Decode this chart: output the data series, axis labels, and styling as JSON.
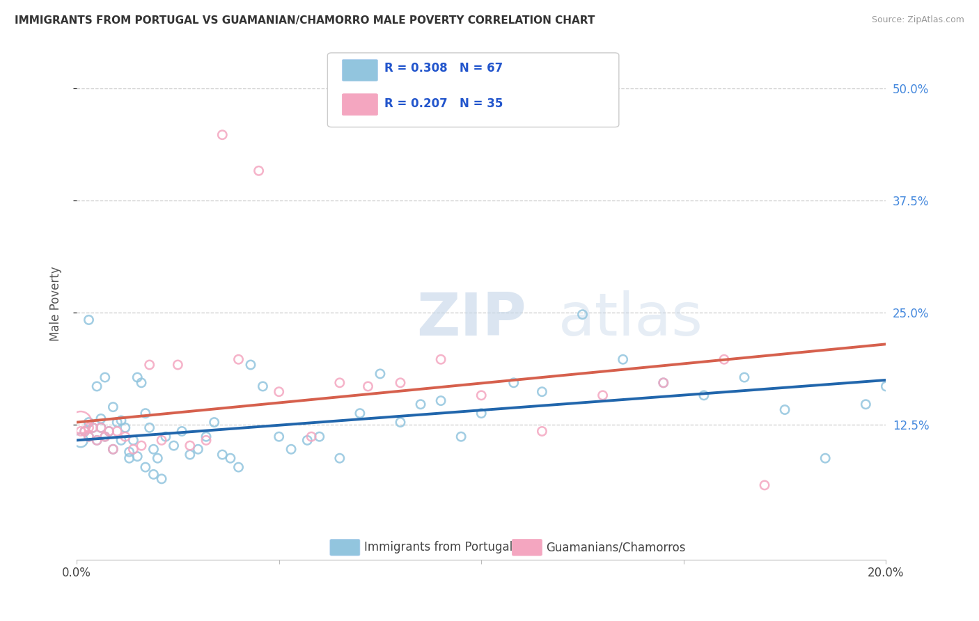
{
  "title": "IMMIGRANTS FROM PORTUGAL VS GUAMANIAN/CHAMORRO MALE POVERTY CORRELATION CHART",
  "source": "Source: ZipAtlas.com",
  "ylabel": "Male Poverty",
  "ytick_labels": [
    "50.0%",
    "37.5%",
    "25.0%",
    "12.5%"
  ],
  "ytick_vals": [
    0.5,
    0.375,
    0.25,
    0.125
  ],
  "xlim": [
    0.0,
    0.2
  ],
  "ylim": [
    -0.025,
    0.545
  ],
  "legend1_label": "R = 0.308   N = 67",
  "legend2_label": "R = 0.207   N = 35",
  "legend_bottom1": "Immigrants from Portugal",
  "legend_bottom2": "Guamanians/Chamorros",
  "blue_color": "#92c5de",
  "pink_color": "#f4a6c0",
  "blue_line_color": "#2166ac",
  "pink_line_color": "#d6604d",
  "watermark_zip": "ZIP",
  "watermark_atlas": "atlas",
  "blue_scatter_x": [
    0.001,
    0.002,
    0.003,
    0.003,
    0.004,
    0.005,
    0.006,
    0.006,
    0.007,
    0.008,
    0.009,
    0.01,
    0.011,
    0.012,
    0.013,
    0.014,
    0.015,
    0.016,
    0.017,
    0.018,
    0.019,
    0.02,
    0.022,
    0.024,
    0.026,
    0.028,
    0.03,
    0.032,
    0.034,
    0.036,
    0.038,
    0.04,
    0.043,
    0.046,
    0.05,
    0.053,
    0.057,
    0.06,
    0.065,
    0.07,
    0.075,
    0.08,
    0.085,
    0.09,
    0.095,
    0.1,
    0.108,
    0.115,
    0.125,
    0.135,
    0.145,
    0.155,
    0.165,
    0.175,
    0.185,
    0.195,
    0.2,
    0.003,
    0.005,
    0.007,
    0.009,
    0.011,
    0.013,
    0.015,
    0.017,
    0.019,
    0.021
  ],
  "blue_scatter_y": [
    0.108,
    0.118,
    0.112,
    0.128,
    0.122,
    0.108,
    0.122,
    0.132,
    0.112,
    0.118,
    0.098,
    0.128,
    0.108,
    0.122,
    0.088,
    0.108,
    0.178,
    0.172,
    0.138,
    0.122,
    0.098,
    0.088,
    0.112,
    0.102,
    0.118,
    0.092,
    0.098,
    0.112,
    0.128,
    0.092,
    0.088,
    0.078,
    0.192,
    0.168,
    0.112,
    0.098,
    0.108,
    0.112,
    0.088,
    0.138,
    0.182,
    0.128,
    0.148,
    0.152,
    0.112,
    0.138,
    0.172,
    0.162,
    0.248,
    0.198,
    0.172,
    0.158,
    0.178,
    0.142,
    0.088,
    0.148,
    0.168,
    0.242,
    0.168,
    0.178,
    0.145,
    0.13,
    0.095,
    0.09,
    0.078,
    0.07,
    0.065
  ],
  "blue_scatter_sizes": [
    200,
    80,
    80,
    80,
    80,
    80,
    80,
    80,
    80,
    80,
    80,
    80,
    80,
    80,
    80,
    80,
    80,
    80,
    80,
    80,
    80,
    80,
    80,
    80,
    80,
    80,
    80,
    80,
    80,
    80,
    80,
    80,
    80,
    80,
    80,
    80,
    80,
    80,
    80,
    80,
    80,
    80,
    80,
    80,
    80,
    80,
    80,
    80,
    80,
    80,
    80,
    80,
    80,
    80,
    80,
    80,
    80,
    80,
    80,
    80,
    80,
    80,
    80,
    80,
    80,
    80,
    80
  ],
  "pink_scatter_x": [
    0.001,
    0.002,
    0.003,
    0.004,
    0.005,
    0.006,
    0.007,
    0.008,
    0.009,
    0.01,
    0.012,
    0.014,
    0.016,
    0.018,
    0.021,
    0.025,
    0.028,
    0.032,
    0.036,
    0.04,
    0.045,
    0.05,
    0.058,
    0.065,
    0.072,
    0.08,
    0.09,
    0.1,
    0.115,
    0.13,
    0.145,
    0.16,
    0.17,
    0.001,
    0.003
  ],
  "pink_scatter_y": [
    0.128,
    0.118,
    0.112,
    0.122,
    0.108,
    0.122,
    0.112,
    0.118,
    0.098,
    0.118,
    0.112,
    0.098,
    0.102,
    0.192,
    0.108,
    0.192,
    0.102,
    0.108,
    0.448,
    0.198,
    0.408,
    0.162,
    0.112,
    0.172,
    0.168,
    0.172,
    0.198,
    0.158,
    0.118,
    0.158,
    0.172,
    0.198,
    0.058,
    0.118,
    0.122
  ],
  "pink_scatter_sizes": [
    500,
    80,
    80,
    80,
    80,
    80,
    80,
    80,
    80,
    80,
    80,
    80,
    80,
    80,
    80,
    80,
    80,
    80,
    80,
    80,
    80,
    80,
    80,
    80,
    80,
    80,
    80,
    80,
    80,
    80,
    80,
    80,
    80,
    80,
    80
  ],
  "blue_line_x0": 0.0,
  "blue_line_x1": 0.2,
  "blue_line_y0": 0.108,
  "blue_line_y1": 0.175,
  "pink_line_x0": 0.0,
  "pink_line_x1": 0.2,
  "pink_line_y0": 0.128,
  "pink_line_y1": 0.215
}
